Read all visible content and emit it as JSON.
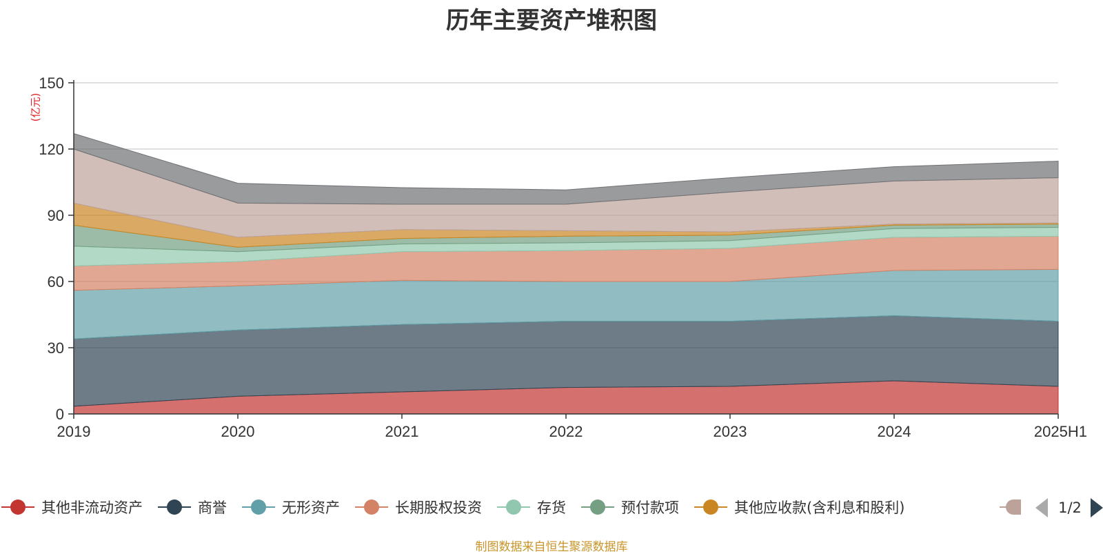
{
  "chart_data": {
    "type": "area",
    "stacked": true,
    "title": "历年主要资产堆积图",
    "y_unit": "(亿元)",
    "categories": [
      "2019",
      "2020",
      "2021",
      "2022",
      "2023",
      "2024",
      "2025H1"
    ],
    "ylim": [
      0,
      150
    ],
    "yticks": [
      0,
      30,
      60,
      90,
      120,
      150
    ],
    "grid": true,
    "legend_position": "bottom",
    "legend_page": "1/2",
    "series": [
      {
        "name": "其他非流动资产",
        "color": "#c23531",
        "values": [
          3.5,
          8,
          10,
          12,
          12.5,
          15,
          12.5
        ]
      },
      {
        "name": "商誉",
        "color": "#2f4554",
        "values": [
          30.5,
          30,
          30.5,
          30,
          29.5,
          29.5,
          29.5
        ]
      },
      {
        "name": "无形资产",
        "color": "#61a0a8",
        "values": [
          22,
          20,
          20,
          18,
          18,
          20.5,
          23.5
        ]
      },
      {
        "name": "长期股权投资",
        "color": "#d48265",
        "values": [
          11,
          11,
          13,
          14,
          15,
          15,
          15
        ]
      },
      {
        "name": "存货",
        "color": "#91c7ae",
        "values": [
          9,
          4.5,
          3.5,
          3.5,
          3.5,
          4,
          4
        ]
      },
      {
        "name": "预付款项",
        "color": "#749f83",
        "values": [
          9.5,
          2,
          2.5,
          3,
          2.5,
          1.5,
          1.5
        ]
      },
      {
        "name": "其他应收款(含利息和股利)",
        "color": "#ca8622",
        "values": [
          10,
          4.5,
          4,
          2.5,
          1.5,
          0.5,
          0.5
        ]
      },
      {
        "name": "",
        "color": "#bda29a",
        "values": [
          24.5,
          15.5,
          11.5,
          12,
          18,
          19.5,
          20.5
        ]
      },
      {
        "name": "",
        "color": "#6e7074",
        "values": [
          7,
          9,
          7.5,
          6.5,
          6.5,
          6.5,
          7.5
        ]
      }
    ]
  },
  "footer": {
    "note": "制图数据来自恒生聚源数据库"
  }
}
